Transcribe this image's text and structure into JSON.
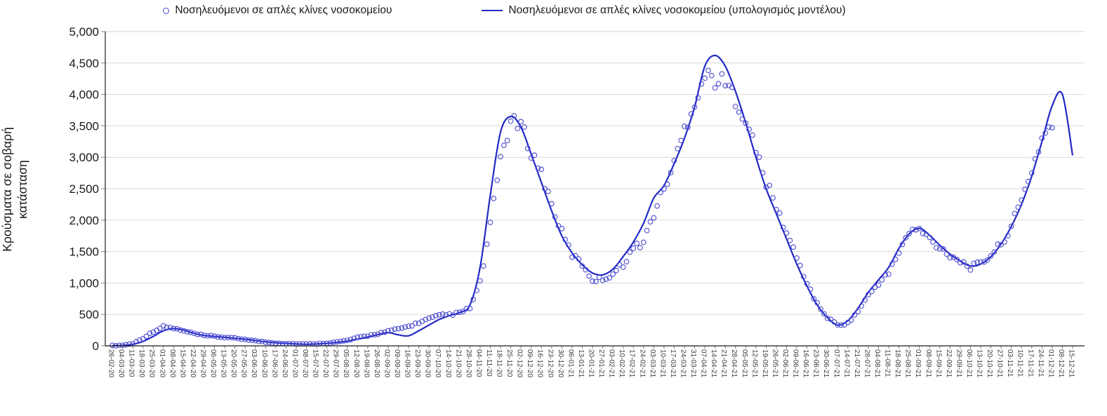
{
  "chart_data": {
    "type": "line",
    "title": "",
    "ylabel": "Κρούσματα σε σοβαρή κατάσταση",
    "ylabel_lines": [
      "Κρούσματα σε σοβαρή",
      "κατάσταση"
    ],
    "xlabel": "",
    "ylim": [
      0,
      5000
    ],
    "y_step": 500,
    "grid": true,
    "legend_position": "top",
    "colors": {
      "scatter": "#4a4ad0",
      "line": "#2229c5",
      "grid": "#d9d9d9",
      "axis": "#1a1a1a",
      "tick_text": "#1a1a1a",
      "x_tick_text": "#3d3d3d"
    },
    "categories": [
      "26-02-20",
      "04-03-20",
      "11-03-20",
      "18-03-20",
      "25-03-20",
      "01-04-20",
      "08-04-20",
      "15-04-20",
      "22-04-20",
      "29-04-20",
      "06-05-20",
      "13-05-20",
      "20-05-20",
      "27-05-20",
      "03-06-20",
      "10-06-20",
      "17-06-20",
      "24-06-20",
      "01-07-20",
      "08-07-20",
      "15-07-20",
      "22-07-20",
      "29-07-20",
      "05-08-20",
      "12-08-20",
      "19-08-20",
      "26-08-20",
      "02-09-20",
      "09-09-20",
      "16-09-20",
      "23-09-20",
      "30-09-20",
      "07-10-20",
      "14-10-20",
      "21-10-20",
      "28-10-20",
      "04-11-20",
      "11-11-20",
      "18-11-20",
      "25-11-20",
      "02-12-20",
      "09-12-20",
      "16-12-20",
      "23-12-20",
      "30-12-20",
      "06-01-21",
      "13-01-21",
      "20-01-21",
      "27-01-21",
      "03-02-21",
      "10-02-21",
      "17-02-21",
      "24-02-21",
      "03-03-21",
      "10-03-21",
      "17-03-21",
      "24-03-21",
      "31-03-21",
      "07-04-21",
      "14-04-21",
      "21-04-21",
      "28-04-21",
      "05-05-21",
      "12-05-21",
      "19-05-21",
      "26-05-21",
      "02-06-21",
      "09-06-21",
      "16-06-21",
      "23-06-21",
      "30-06-21",
      "07-07-21",
      "14-07-21",
      "21-07-21",
      "28-07-21",
      "04-08-21",
      "11-08-21",
      "18-08-21",
      "25-08-21",
      "01-09-21",
      "08-09-21",
      "15-09-21",
      "22-09-21",
      "29-09-21",
      "06-10-21",
      "13-10-21",
      "20-10-21",
      "27-10-21",
      "03-11-21",
      "10-11-21",
      "17-11-21",
      "24-11-21",
      "01-12-21",
      "08-12-21",
      "15-12-21"
    ],
    "series": [
      {
        "name": "Νοσηλευόμενοι σε απλές κλίνες νοσοκομείου",
        "type": "scatter",
        "color": "#4a4ad0",
        "values": [
          3,
          10,
          35,
          120,
          230,
          305,
          280,
          235,
          195,
          160,
          150,
          135,
          120,
          105,
          80,
          60,
          45,
          38,
          32,
          28,
          35,
          45,
          60,
          85,
          130,
          160,
          195,
          230,
          270,
          310,
          370,
          430,
          480,
          500,
          520,
          600,
          1000,
          1900,
          3000,
          3550,
          3500,
          3100,
          2750,
          2250,
          1800,
          1450,
          1300,
          1050,
          1060,
          1150,
          1300,
          1550,
          1650,
          2100,
          2500,
          2900,
          3450,
          3900,
          4300,
          4250,
          4150,
          3950,
          3600,
          3100,
          2600,
          2200,
          1800,
          1400,
          1000,
          660,
          450,
          330,
          360,
          550,
          800,
          1000,
          1150,
          1500,
          1800,
          1850,
          1700,
          1560,
          1450,
          1350,
          1250,
          1300,
          1450,
          1620,
          1900,
          2300,
          2800,
          3300,
          3550,
          null,
          null
        ]
      },
      {
        "name": "Νοσηλευόμενοι σε απλές κλίνες νοσοκομείου (υπολογισμός μοντέλου)",
        "type": "line",
        "color": "#2229c5",
        "values": [
          2,
          8,
          25,
          70,
          150,
          240,
          275,
          250,
          200,
          165,
          150,
          135,
          120,
          105,
          85,
          65,
          50,
          40,
          30,
          25,
          30,
          40,
          55,
          75,
          105,
          140,
          180,
          210,
          175,
          160,
          240,
          330,
          420,
          480,
          530,
          650,
          1250,
          2400,
          3400,
          3650,
          3480,
          3050,
          2600,
          2150,
          1750,
          1480,
          1290,
          1160,
          1130,
          1220,
          1420,
          1650,
          1950,
          2350,
          2550,
          2900,
          3300,
          3800,
          4450,
          4620,
          4450,
          4050,
          3550,
          3000,
          2500,
          2100,
          1700,
          1300,
          950,
          650,
          450,
          330,
          400,
          600,
          850,
          1050,
          1250,
          1550,
          1780,
          1870,
          1760,
          1600,
          1460,
          1350,
          1270,
          1300,
          1420,
          1620,
          1900,
          2250,
          2700,
          3250,
          3820,
          4000,
          3030
        ]
      }
    ]
  }
}
